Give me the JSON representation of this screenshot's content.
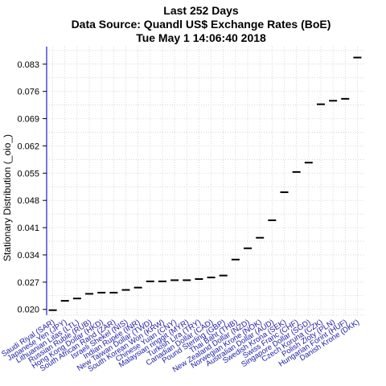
{
  "chart_data": {
    "type": "scatter",
    "title_lines": [
      "Last 252 Days",
      "Data Source: Quandl US$ Exchange Rates (BoE)",
      "Tue May  1 14:06:40 2018"
    ],
    "ylabel": "Stationary Distribution (_oio_)",
    "xlabel": "",
    "ylim": [
      0.0185,
      0.0875
    ],
    "yticks": [
      "0.020",
      "0.027",
      "0.034",
      "0.041",
      "0.048",
      "0.055",
      "0.062",
      "0.069",
      "0.076",
      "0.083"
    ],
    "grid": true,
    "categories": [
      "Saudi Riyal (SAR)",
      "Japanese Yen (JPY)",
      "Lithuanian Litas (LTL)",
      "Russian Ruble (RUB)",
      "Hong Kong Dollar (HKD)",
      "South African Rand (ZAR)",
      "Israeli Shekel (NIS)",
      "Indian Rupee (INR)",
      "New Taiwan Dollar (TWD)",
      "South Korean Won (KRW)",
      "Chinese Yuan (CNY)",
      "Malaysian ringgit (MYR)",
      "Turkish Lira (TRY)",
      "Canadian Dollar (CAD)",
      "Pound Sterling (GBP)",
      "Thai Baht (THB)",
      "New Zealand Dollar (NZD)",
      "Norwegian Krone (NOK)",
      "Australian Dollar (AUD)",
      "Swedish Krona (SEK)",
      "Swiss Franc (CHF)",
      "Singapore Dollar (SGD)",
      "Czech Koruna (CZK)",
      "Polish Zloty (PLN)",
      "Hungarian Forint (HUF)",
      "Danish Krone (DKK)"
    ],
    "values": [
      0.0198,
      0.0222,
      0.0228,
      0.024,
      0.0243,
      0.0243,
      0.025,
      0.0256,
      0.0272,
      0.0272,
      0.0275,
      0.0275,
      0.0278,
      0.0282,
      0.0287,
      0.0328,
      0.0357,
      0.0384,
      0.0429,
      0.0501,
      0.0553,
      0.0577,
      0.0727,
      0.0736,
      0.0741,
      0.0847
    ],
    "colors": {
      "marker": "#000000",
      "axis": "#4b4bd8",
      "grid": "#c8c8c8",
      "tick_label": "#1a1aa6"
    }
  }
}
